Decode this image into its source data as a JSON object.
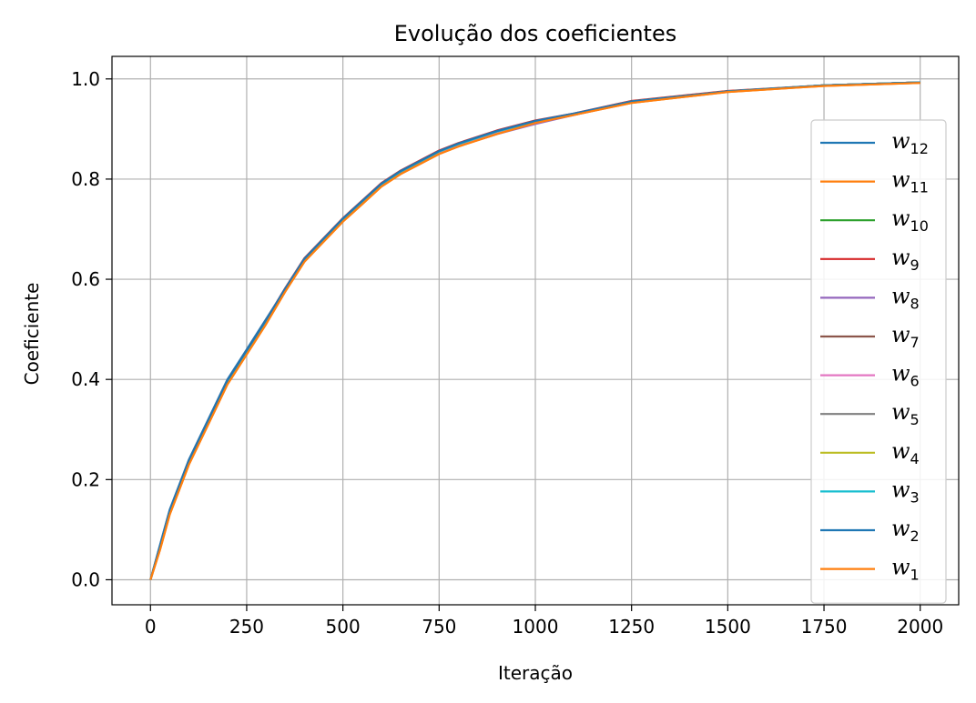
{
  "chart_data": {
    "type": "line",
    "title": "Evolução dos coeficientes",
    "xlabel": "Iteração",
    "ylabel": "Coeficiente",
    "xlim": [
      -100,
      2100
    ],
    "ylim": [
      -0.05,
      1.045
    ],
    "xticks": [
      0,
      250,
      500,
      750,
      1000,
      1250,
      1500,
      1750,
      2000
    ],
    "xtick_labels": [
      "0",
      "250",
      "500",
      "750",
      "1000",
      "1250",
      "1500",
      "1750",
      "2000"
    ],
    "yticks": [
      0.0,
      0.2,
      0.4,
      0.6,
      0.8,
      1.0
    ],
    "ytick_labels": [
      "0.0",
      "0.2",
      "0.4",
      "0.6",
      "0.8",
      "1.0"
    ],
    "grid": true,
    "legend_position": "right",
    "x": [
      0,
      25,
      50,
      75,
      100,
      150,
      200,
      250,
      300,
      350,
      400,
      450,
      500,
      550,
      600,
      650,
      700,
      750,
      800,
      900,
      1000,
      1100,
      1250,
      1500,
      1750,
      2000
    ],
    "series": [
      {
        "name": "w",
        "subscript": "12",
        "color": "#1f77b4",
        "values": [
          0.0,
          0.07,
          0.14,
          0.19,
          0.24,
          0.32,
          0.4,
          0.46,
          0.52,
          0.58,
          0.64,
          0.68,
          0.72,
          0.755,
          0.79,
          0.815,
          0.835,
          0.855,
          0.87,
          0.895,
          0.915,
          0.93,
          0.955,
          0.975,
          0.987,
          0.993
        ]
      },
      {
        "name": "w",
        "subscript": "11",
        "color": "#ff7f0e",
        "values": [
          0.0,
          0.06,
          0.13,
          0.18,
          0.23,
          0.31,
          0.39,
          0.45,
          0.51,
          0.575,
          0.635,
          0.675,
          0.715,
          0.75,
          0.785,
          0.81,
          0.83,
          0.85,
          0.865,
          0.89,
          0.912,
          0.928,
          0.952,
          0.974,
          0.986,
          0.992
        ]
      },
      {
        "name": "w",
        "subscript": "10",
        "color": "#2ca02c",
        "values": [
          0.0,
          0.065,
          0.135,
          0.185,
          0.235,
          0.315,
          0.395,
          0.455,
          0.515,
          0.58,
          0.64,
          0.68,
          0.72,
          0.755,
          0.79,
          0.815,
          0.835,
          0.855,
          0.87,
          0.895,
          0.915,
          0.93,
          0.955,
          0.975,
          0.987,
          0.993
        ]
      },
      {
        "name": "w",
        "subscript": "9",
        "color": "#d62728",
        "values": [
          0.0,
          0.068,
          0.138,
          0.188,
          0.238,
          0.318,
          0.398,
          0.458,
          0.518,
          0.582,
          0.642,
          0.682,
          0.722,
          0.757,
          0.792,
          0.817,
          0.837,
          0.857,
          0.872,
          0.897,
          0.917,
          0.931,
          0.956,
          0.976,
          0.987,
          0.993
        ]
      },
      {
        "name": "w",
        "subscript": "8",
        "color": "#9467bd",
        "values": [
          0.0,
          0.066,
          0.136,
          0.186,
          0.236,
          0.316,
          0.396,
          0.456,
          0.516,
          0.579,
          0.639,
          0.679,
          0.719,
          0.754,
          0.789,
          0.814,
          0.834,
          0.852,
          0.866,
          0.89,
          0.91,
          0.928,
          0.953,
          0.975,
          0.987,
          0.993
        ]
      },
      {
        "name": "w",
        "subscript": "7",
        "color": "#8c564b",
        "values": [
          0.0,
          0.067,
          0.137,
          0.187,
          0.237,
          0.317,
          0.397,
          0.457,
          0.517,
          0.581,
          0.641,
          0.681,
          0.721,
          0.756,
          0.791,
          0.816,
          0.836,
          0.856,
          0.871,
          0.896,
          0.916,
          0.93,
          0.955,
          0.975,
          0.987,
          0.993
        ]
      },
      {
        "name": "w",
        "subscript": "6",
        "color": "#e377c2",
        "values": [
          0.0,
          0.066,
          0.136,
          0.186,
          0.236,
          0.316,
          0.396,
          0.456,
          0.516,
          0.58,
          0.64,
          0.68,
          0.72,
          0.755,
          0.79,
          0.815,
          0.835,
          0.853,
          0.868,
          0.892,
          0.912,
          0.929,
          0.954,
          0.975,
          0.987,
          0.993
        ]
      },
      {
        "name": "w",
        "subscript": "5",
        "color": "#7f7f7f",
        "values": [
          0.0,
          0.067,
          0.137,
          0.187,
          0.237,
          0.317,
          0.397,
          0.457,
          0.517,
          0.58,
          0.64,
          0.68,
          0.72,
          0.755,
          0.79,
          0.815,
          0.835,
          0.855,
          0.87,
          0.895,
          0.915,
          0.93,
          0.955,
          0.975,
          0.987,
          0.993
        ]
      },
      {
        "name": "w",
        "subscript": "4",
        "color": "#bcbd22",
        "values": [
          0.0,
          0.066,
          0.136,
          0.186,
          0.236,
          0.316,
          0.396,
          0.456,
          0.516,
          0.58,
          0.64,
          0.68,
          0.72,
          0.755,
          0.79,
          0.815,
          0.835,
          0.855,
          0.87,
          0.895,
          0.915,
          0.93,
          0.955,
          0.975,
          0.987,
          0.993
        ]
      },
      {
        "name": "w",
        "subscript": "3",
        "color": "#17becf",
        "values": [
          0.0,
          0.067,
          0.137,
          0.187,
          0.237,
          0.317,
          0.397,
          0.457,
          0.517,
          0.58,
          0.64,
          0.68,
          0.72,
          0.755,
          0.79,
          0.815,
          0.835,
          0.855,
          0.87,
          0.895,
          0.915,
          0.93,
          0.955,
          0.975,
          0.987,
          0.993
        ]
      },
      {
        "name": "w",
        "subscript": "2",
        "color": "#1f77b4",
        "values": [
          0.0,
          0.068,
          0.138,
          0.188,
          0.238,
          0.318,
          0.398,
          0.458,
          0.518,
          0.581,
          0.641,
          0.681,
          0.721,
          0.756,
          0.791,
          0.816,
          0.836,
          0.856,
          0.871,
          0.896,
          0.916,
          0.931,
          0.955,
          0.975,
          0.987,
          0.993
        ]
      },
      {
        "name": "w",
        "subscript": "1",
        "color": "#ff7f0e",
        "values": [
          0.0,
          0.06,
          0.13,
          0.18,
          0.23,
          0.31,
          0.39,
          0.45,
          0.51,
          0.575,
          0.635,
          0.675,
          0.715,
          0.75,
          0.785,
          0.81,
          0.83,
          0.85,
          0.865,
          0.89,
          0.912,
          0.928,
          0.952,
          0.974,
          0.986,
          0.992
        ]
      }
    ]
  }
}
